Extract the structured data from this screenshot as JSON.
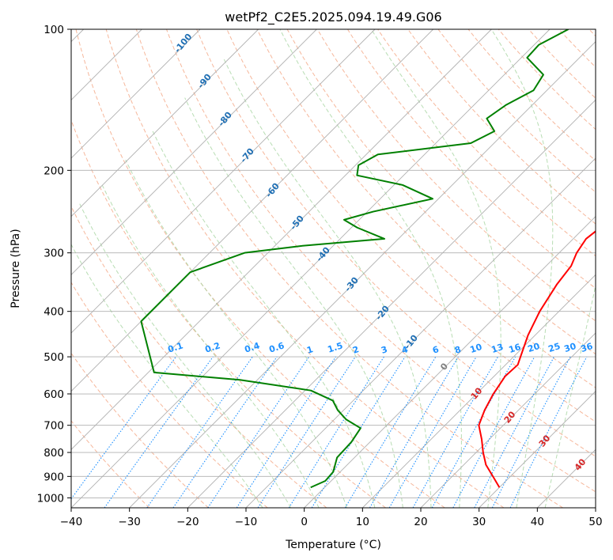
{
  "chart_data": {
    "type": "line",
    "title": "wetPf2_C2E5.2025.094.19.49.G06",
    "xlabel": "Temperature (°C)",
    "ylabel": "Pressure (hPa)",
    "xlim": [
      -40,
      50
    ],
    "ylim": [
      1050,
      100
    ],
    "y_scale": "log",
    "x_ticks": [
      -40,
      -30,
      -20,
      -10,
      0,
      10,
      20,
      30,
      40,
      50
    ],
    "y_ticks": [
      100,
      200,
      300,
      400,
      500,
      600,
      700,
      800,
      900,
      1000
    ],
    "grid": true,
    "series": [
      {
        "color": "#ff0000",
        "points": [
          {
            "p": 950,
            "t": 30.0
          },
          {
            "p": 900,
            "t": 27.0
          },
          {
            "p": 850,
            "t": 23.8
          },
          {
            "p": 800,
            "t": 21.2
          },
          {
            "p": 750,
            "t": 18.7
          },
          {
            "p": 700,
            "t": 15.8
          },
          {
            "p": 650,
            "t": 14.2
          },
          {
            "p": 600,
            "t": 12.9
          },
          {
            "p": 550,
            "t": 11.9
          },
          {
            "p": 520,
            "t": 12.1
          },
          {
            "p": 500,
            "t": 11.2
          },
          {
            "p": 450,
            "t": 8.8
          },
          {
            "p": 400,
            "t": 6.7
          },
          {
            "p": 350,
            "t": 5.0
          },
          {
            "p": 320,
            "t": 4.3
          },
          {
            "p": 300,
            "t": 3.0
          },
          {
            "p": 280,
            "t": 2.2
          },
          {
            "p": 260,
            "t": 2.9
          },
          {
            "p": 240,
            "t": 4.0
          },
          {
            "p": 220,
            "t": 5.4
          },
          {
            "p": 200,
            "t": 7.0
          },
          {
            "p": 185,
            "t": 7.7
          },
          {
            "p": 170,
            "t": 7.2
          },
          {
            "p": 155,
            "t": 6.3
          },
          {
            "p": 140,
            "t": 6.2
          },
          {
            "p": 130,
            "t": 5.2
          },
          {
            "p": 120,
            "t": 5.0
          },
          {
            "p": 110,
            "t": 5.7
          },
          {
            "p": 100,
            "t": 6.6
          }
        ]
      },
      {
        "color": "#008000",
        "points": [
          {
            "p": 950,
            "t": -2.4
          },
          {
            "p": 920,
            "t": -1.0
          },
          {
            "p": 880,
            "t": -1.2
          },
          {
            "p": 820,
            "t": -3.0
          },
          {
            "p": 760,
            "t": -3.2
          },
          {
            "p": 710,
            "t": -4.0
          },
          {
            "p": 680,
            "t": -8.0
          },
          {
            "p": 650,
            "t": -11.0
          },
          {
            "p": 620,
            "t": -13.5
          },
          {
            "p": 590,
            "t": -19.0
          },
          {
            "p": 560,
            "t": -33.0
          },
          {
            "p": 540,
            "t": -49.0
          },
          {
            "p": 420,
            "t": -60.0
          },
          {
            "p": 330,
            "t": -60.0
          },
          {
            "p": 300,
            "t": -54.0
          },
          {
            "p": 290,
            "t": -45.5
          },
          {
            "p": 280,
            "t": -32.4
          },
          {
            "p": 265,
            "t": -39.0
          },
          {
            "p": 255,
            "t": -42.6
          },
          {
            "p": 245,
            "t": -39.0
          },
          {
            "p": 230,
            "t": -31.0
          },
          {
            "p": 215,
            "t": -38.5
          },
          {
            "p": 205,
            "t": -48.0
          },
          {
            "p": 195,
            "t": -49.5
          },
          {
            "p": 185,
            "t": -48.0
          },
          {
            "p": 175,
            "t": -34.0
          },
          {
            "p": 165,
            "t": -32.0
          },
          {
            "p": 155,
            "t": -35.5
          },
          {
            "p": 145,
            "t": -34.5
          },
          {
            "p": 135,
            "t": -32.3
          },
          {
            "p": 125,
            "t": -33.3
          },
          {
            "p": 115,
            "t": -39.0
          },
          {
            "p": 108,
            "t": -39.2
          },
          {
            "p": 100,
            "t": -36.8
          }
        ]
      }
    ],
    "dry_adiabat_labels": [
      "-100",
      "-90",
      "-80",
      "-70",
      "-60",
      "-50",
      "-40",
      "-30",
      "-20",
      "-10",
      "0",
      "10",
      "20",
      "30",
      "40"
    ],
    "mixing_ratio_labels": [
      "0.1",
      "0.2",
      "0.4",
      "0.6",
      "1",
      "1.5",
      "2",
      "3",
      "4",
      "6",
      "8",
      "10",
      "13",
      "16",
      "20",
      "25",
      "30",
      "36"
    ],
    "mixing_ratio_values": [
      0.1,
      0.2,
      0.4,
      0.6,
      1,
      1.5,
      2,
      3,
      4,
      6,
      8,
      10,
      13,
      16,
      20,
      25,
      30,
      36
    ],
    "colors": {
      "isotherm": "#b0b0b0",
      "isobar": "#b0b0b0",
      "dry_adiabat": "#f4a582",
      "moist_adiabat": "#a6d5a0",
      "mixing_ratio": "#1e90ff",
      "label_cold": "#1f6fb4",
      "label_zero": "#808080",
      "label_warm": "#d62728"
    }
  }
}
